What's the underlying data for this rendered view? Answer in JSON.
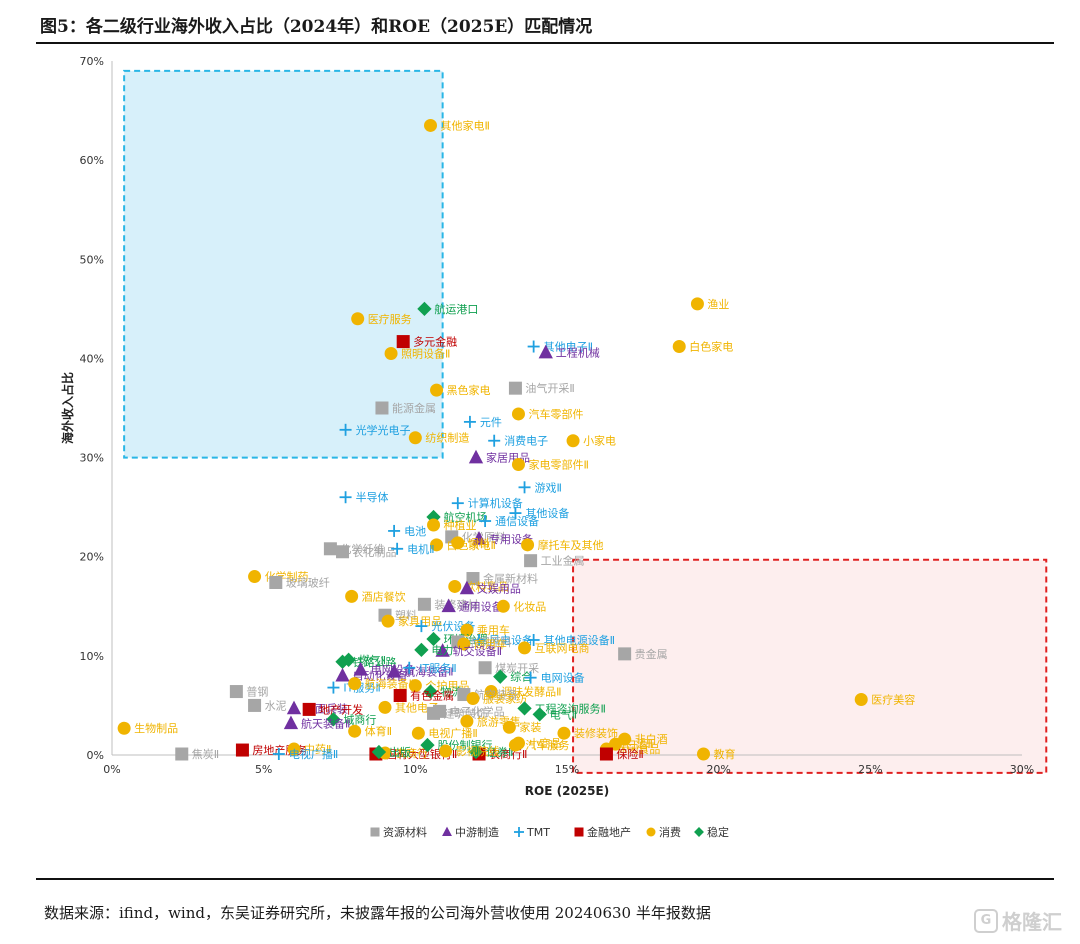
{
  "title": "图5：各二级行业海外收入占比（2024年）和ROE（2025E）匹配情况",
  "source": "数据来源：ifind，wind，东吴证券研究所，未披露年报的公司海外营收使用 20240630 半年报数据",
  "watermark": "格隆汇",
  "watermark_logo": "G",
  "colors": {
    "资源材料": "#a6a6a6",
    "中游制造": "#7030a0",
    "TMT": "#1fa0e0",
    "金融地产": "#c00000",
    "消费": "#f0b400",
    "稳定": "#10a050",
    "blue_zone": "#29b6e6",
    "red_zone": "#e02020"
  },
  "chart_data": {
    "type": "scatter",
    "xlabel": "ROE (2025E)",
    "ylabel": "海外收入占比",
    "xlim": [
      0,
      30
    ],
    "ylim": [
      0,
      70
    ],
    "x_ticks": [
      "0%",
      "5%",
      "10%",
      "15%",
      "20%",
      "25%",
      "30%"
    ],
    "y_ticks": [
      "0%",
      "10%",
      "20%",
      "30%",
      "40%",
      "50%",
      "60%",
      "70%"
    ],
    "legend_position": "bottom",
    "legend": [
      {
        "name": "资源材料",
        "marker": "square"
      },
      {
        "name": "中游制造",
        "marker": "triangle"
      },
      {
        "name": "TMT",
        "marker": "plus"
      },
      {
        "name": "金融地产",
        "marker": "square"
      },
      {
        "name": "消费",
        "marker": "circle"
      },
      {
        "name": "稳定",
        "marker": "diamond"
      }
    ],
    "zones": [
      {
        "name": "blue",
        "x": [
          0.4,
          10.9
        ],
        "y": [
          30,
          69
        ]
      },
      {
        "name": "red",
        "x": [
          15.2,
          30.8
        ],
        "y": [
          -1.8,
          19.7
        ]
      }
    ],
    "points": [
      {
        "group": "消费",
        "x": 10.5,
        "y": 63.5,
        "label": "其他家电Ⅱ"
      },
      {
        "group": "消费",
        "x": 19.3,
        "y": 45.5,
        "label": "渔业"
      },
      {
        "group": "消费",
        "x": 18.7,
        "y": 41.2,
        "label": "白色家电"
      },
      {
        "group": "消费",
        "x": 8.1,
        "y": 44.0,
        "label": "医疗服务"
      },
      {
        "group": "稳定",
        "x": 10.3,
        "y": 45.0,
        "label": "航运港口"
      },
      {
        "group": "金融地产",
        "x": 9.6,
        "y": 41.7,
        "label": "多元金融"
      },
      {
        "group": "消费",
        "x": 9.2,
        "y": 40.5,
        "label": "照明设备Ⅱ"
      },
      {
        "group": "TMT",
        "x": 13.9,
        "y": 41.2,
        "label": "其他电子Ⅱ"
      },
      {
        "group": "中游制造",
        "x": 14.3,
        "y": 40.6,
        "label": "工程机械"
      },
      {
        "group": "资源材料",
        "x": 13.3,
        "y": 37.0,
        "label": "油气开采Ⅱ"
      },
      {
        "group": "消费",
        "x": 10.7,
        "y": 36.8,
        "label": "黑色家电"
      },
      {
        "group": "资源材料",
        "x": 8.9,
        "y": 35.0,
        "label": "能源金属"
      },
      {
        "group": "消费",
        "x": 13.4,
        "y": 34.4,
        "label": "汽车零部件"
      },
      {
        "group": "TMT",
        "x": 11.8,
        "y": 33.6,
        "label": "元件"
      },
      {
        "group": "TMT",
        "x": 7.7,
        "y": 32.8,
        "label": "光学光电子"
      },
      {
        "group": "消费",
        "x": 10.0,
        "y": 32.0,
        "label": "纺织制造"
      },
      {
        "group": "TMT",
        "x": 12.6,
        "y": 31.7,
        "label": "消费电子"
      },
      {
        "group": "消费",
        "x": 15.2,
        "y": 31.7,
        "label": "小家电"
      },
      {
        "group": "中游制造",
        "x": 12.0,
        "y": 30.0,
        "label": "家居用品"
      },
      {
        "group": "消费",
        "x": 13.4,
        "y": 29.3,
        "label": "家电零部件Ⅱ"
      },
      {
        "group": "TMT",
        "x": 13.6,
        "y": 27.0,
        "label": "游戏Ⅱ"
      },
      {
        "group": "TMT",
        "x": 7.7,
        "y": 26.0,
        "label": "半导体"
      },
      {
        "group": "TMT",
        "x": 11.4,
        "y": 25.4,
        "label": "计算机设备"
      },
      {
        "group": "TMT",
        "x": 13.3,
        "y": 24.4,
        "label": "其他设备"
      },
      {
        "group": "稳定",
        "x": 10.6,
        "y": 24.0,
        "label": "航空机场"
      },
      {
        "group": "TMT",
        "x": 12.3,
        "y": 23.6,
        "label": "通信设备"
      },
      {
        "group": "消费",
        "x": 10.6,
        "y": 23.2,
        "label": "种植业"
      },
      {
        "group": "TMT",
        "x": 9.3,
        "y": 22.6,
        "label": "电池"
      },
      {
        "group": "资源材料",
        "x": 11.2,
        "y": 22.0,
        "label": "化学原料"
      },
      {
        "group": "中游制造",
        "x": 12.1,
        "y": 21.8,
        "label": "专用设备"
      },
      {
        "group": "消费",
        "x": 11.4,
        "y": 21.4,
        "label": "饲料"
      },
      {
        "group": "消费",
        "x": 10.7,
        "y": 21.2,
        "label": "白色家电Ⅱ"
      },
      {
        "group": "消费",
        "x": 13.7,
        "y": 21.2,
        "label": "摩托车及其他"
      },
      {
        "group": "资源材料",
        "x": 7.2,
        "y": 20.8,
        "label": "化学纤维"
      },
      {
        "group": "资源材料",
        "x": 7.6,
        "y": 20.5,
        "label": "农化制品"
      },
      {
        "group": "TMT",
        "x": 9.4,
        "y": 20.8,
        "label": "电机Ⅱ"
      },
      {
        "group": "资源材料",
        "x": 13.8,
        "y": 19.6,
        "label": "工业金属"
      },
      {
        "group": "消费",
        "x": 4.7,
        "y": 18.0,
        "label": "化学制药"
      },
      {
        "group": "资源材料",
        "x": 5.4,
        "y": 17.4,
        "label": "玻璃玻纤"
      },
      {
        "group": "资源材料",
        "x": 11.9,
        "y": 17.8,
        "label": "金属新材料"
      },
      {
        "group": "消费",
        "x": 11.3,
        "y": 17.0,
        "label": "饮料乳品"
      },
      {
        "group": "中游制造",
        "x": 11.7,
        "y": 16.8,
        "label": "文娱用品"
      },
      {
        "group": "消费",
        "x": 7.9,
        "y": 16.0,
        "label": "酒店餐饮"
      },
      {
        "group": "资源材料",
        "x": 10.3,
        "y": 15.2,
        "label": "装修建材"
      },
      {
        "group": "中游制造",
        "x": 11.1,
        "y": 15.0,
        "label": "通用设备"
      },
      {
        "group": "消费",
        "x": 12.9,
        "y": 15.0,
        "label": "化妆品"
      },
      {
        "group": "资源材料",
        "x": 9.0,
        "y": 14.1,
        "label": "塑料"
      },
      {
        "group": "消费",
        "x": 9.1,
        "y": 13.5,
        "label": "家具用品"
      },
      {
        "group": "TMT",
        "x": 10.2,
        "y": 13.0,
        "label": "光伏设备"
      },
      {
        "group": "消费",
        "x": 11.7,
        "y": 12.6,
        "label": "乘用车"
      },
      {
        "group": "稳定",
        "x": 10.6,
        "y": 11.7,
        "label": "环境治理"
      },
      {
        "group": "TMT",
        "x": 12.1,
        "y": 11.6,
        "label": "风电设备"
      },
      {
        "group": "资源材料",
        "x": 11.4,
        "y": 11.4,
        "label": "冶钢原料"
      },
      {
        "group": "TMT",
        "x": 13.9,
        "y": 11.6,
        "label": "其他电源设备Ⅱ"
      },
      {
        "group": "消费",
        "x": 11.6,
        "y": 11.2,
        "label": "商用车"
      },
      {
        "group": "消费",
        "x": 13.6,
        "y": 10.8,
        "label": "互联网电商"
      },
      {
        "group": "中游制造",
        "x": 10.9,
        "y": 10.5,
        "label": "轨交设备Ⅱ"
      },
      {
        "group": "稳定",
        "x": 10.2,
        "y": 10.6,
        "label": "电力"
      },
      {
        "group": "资源材料",
        "x": 16.9,
        "y": 10.2,
        "label": "贵金属"
      },
      {
        "group": "稳定",
        "x": 7.8,
        "y": 9.6,
        "label": "燃气Ⅱ"
      },
      {
        "group": "稳定",
        "x": 7.6,
        "y": 9.4,
        "label": "铁路公路"
      },
      {
        "group": "中游制造",
        "x": 8.2,
        "y": 8.6,
        "label": "电网设备"
      },
      {
        "group": "中游制造",
        "x": 9.3,
        "y": 8.4,
        "label": "航海装备Ⅱ"
      },
      {
        "group": "TMT",
        "x": 9.8,
        "y": 8.8,
        "label": "IT服务Ⅱ"
      },
      {
        "group": "资源材料",
        "x": 12.3,
        "y": 8.8,
        "label": "煤炭开采"
      },
      {
        "group": "中游制造",
        "x": 7.6,
        "y": 8.0,
        "label": "自动化设备"
      },
      {
        "group": "稳定",
        "x": 12.8,
        "y": 7.9,
        "label": "综合"
      },
      {
        "group": "TMT",
        "x": 13.8,
        "y": 7.8,
        "label": "电网设备"
      },
      {
        "group": "消费",
        "x": 10.0,
        "y": 7.0,
        "label": "个护用品"
      },
      {
        "group": "TMT",
        "x": 7.3,
        "y": 6.8,
        "label": "IT服务Ⅱ"
      },
      {
        "group": "消费",
        "x": 8.0,
        "y": 7.2,
        "label": "航海装备Ⅱ"
      },
      {
        "group": "资源材料",
        "x": 4.1,
        "y": 6.4,
        "label": "普钢"
      },
      {
        "group": "消费",
        "x": 12.5,
        "y": 6.4,
        "label": "调味发酵品Ⅱ"
      },
      {
        "group": "稳定",
        "x": 10.5,
        "y": 6.4,
        "label": "物流"
      },
      {
        "group": "金融地产",
        "x": 9.5,
        "y": 6.0,
        "label": "有色金属"
      },
      {
        "group": "资源材料",
        "x": 11.6,
        "y": 6.1,
        "label": "航空装备"
      },
      {
        "group": "消费",
        "x": 11.9,
        "y": 5.7,
        "label": "服装家纺"
      },
      {
        "group": "资源材料",
        "x": 4.7,
        "y": 5.0,
        "label": "水泥"
      },
      {
        "group": "中游制造",
        "x": 6.0,
        "y": 4.7,
        "label": "地面兵装"
      },
      {
        "group": "金融地产",
        "x": 6.5,
        "y": 4.6,
        "label": "地产开发"
      },
      {
        "group": "消费",
        "x": 9.0,
        "y": 4.8,
        "label": "其他电子"
      },
      {
        "group": "资源材料",
        "x": 10.8,
        "y": 4.4,
        "label": "电子化学品"
      },
      {
        "group": "稳定",
        "x": 13.6,
        "y": 4.7,
        "label": "工程咨询服务Ⅱ"
      },
      {
        "group": "稳定",
        "x": 14.1,
        "y": 4.1,
        "label": "电气Ⅱ"
      },
      {
        "group": "资源材料",
        "x": 10.6,
        "y": 4.2,
        "label": "建筑装饰"
      },
      {
        "group": "稳定",
        "x": 7.3,
        "y": 3.6,
        "label": "城商行"
      },
      {
        "group": "中游制造",
        "x": 5.9,
        "y": 3.2,
        "label": "航天装备Ⅱ"
      },
      {
        "group": "消费",
        "x": 11.7,
        "y": 3.4,
        "label": "旅游零售"
      },
      {
        "group": "消费",
        "x": 8.0,
        "y": 2.4,
        "label": "体育Ⅱ"
      },
      {
        "group": "消费",
        "x": 13.1,
        "y": 2.8,
        "label": "家装"
      },
      {
        "group": "消费",
        "x": 0.4,
        "y": 2.7,
        "label": "生物制品"
      },
      {
        "group": "消费",
        "x": 14.9,
        "y": 2.2,
        "label": "装修装饰"
      },
      {
        "group": "消费",
        "x": 10.1,
        "y": 2.2,
        "label": "电视广播Ⅱ"
      },
      {
        "group": "消费",
        "x": 24.7,
        "y": 5.6,
        "label": "医疗美容"
      },
      {
        "group": "消费",
        "x": 16.9,
        "y": 1.6,
        "label": "非白酒"
      },
      {
        "group": "消费",
        "x": 16.6,
        "y": 1.1,
        "label": "白酒Ⅱ"
      },
      {
        "group": "消费",
        "x": 16.3,
        "y": 0.6,
        "label": "休闲食品"
      },
      {
        "group": "消费",
        "x": 13.4,
        "y": 1.2,
        "label": "小商品"
      },
      {
        "group": "消费",
        "x": 19.5,
        "y": 0.1,
        "label": "教育"
      },
      {
        "group": "金融地产",
        "x": 16.3,
        "y": 0.1,
        "label": "保险Ⅱ"
      },
      {
        "group": "金融地产",
        "x": 12.1,
        "y": 0.1,
        "label": "农商行Ⅱ"
      },
      {
        "group": "稳定",
        "x": 12.0,
        "y": 0.3,
        "label": "证券Ⅱ"
      },
      {
        "group": "资源材料",
        "x": 2.3,
        "y": 0.1,
        "label": "焦炭Ⅱ"
      },
      {
        "group": "金融地产",
        "x": 4.3,
        "y": 0.5,
        "label": "房地产服务"
      },
      {
        "group": "消费",
        "x": 6.0,
        "y": 0.6,
        "label": "中药Ⅱ"
      },
      {
        "group": "TMT",
        "x": 5.5,
        "y": 0.1,
        "label": "电视广播Ⅱ"
      },
      {
        "group": "金融地产",
        "x": 8.7,
        "y": 0.1,
        "label": "国有大型银行Ⅱ"
      },
      {
        "group": "消费",
        "x": 9.0,
        "y": 0.2,
        "label": "农商行"
      },
      {
        "group": "稳定",
        "x": 10.4,
        "y": 1.0,
        "label": "股份制银行"
      },
      {
        "group": "稳定",
        "x": 8.8,
        "y": 0.3,
        "label": "出版"
      },
      {
        "group": "消费",
        "x": 11.0,
        "y": 0.4,
        "label": "影视院线"
      },
      {
        "group": "消费",
        "x": 13.3,
        "y": 1.0,
        "label": "汽车服务"
      }
    ]
  }
}
